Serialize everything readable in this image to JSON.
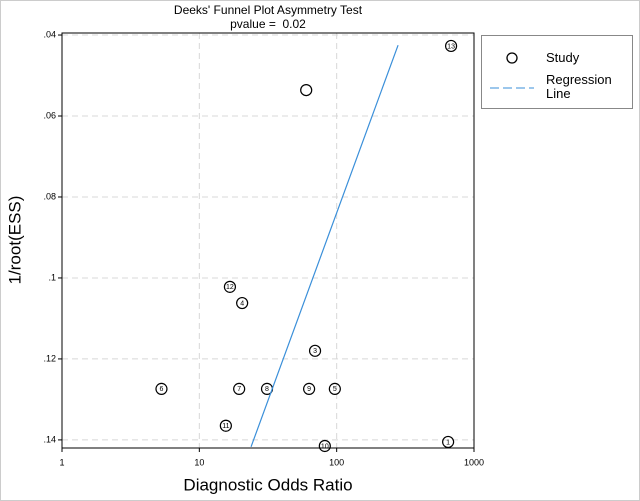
{
  "chart_data": {
    "type": "scatter",
    "title": "Deeks' Funnel Plot Asymmetry Test",
    "subtitle": "pvalue =  0.02",
    "x_label": "Diagnostic Odds Ratio",
    "y_label": "1/root(ESS)",
    "x_log": true,
    "y_inverted": true,
    "grid": true,
    "xlim": [
      1,
      1000
    ],
    "xticks": [
      1,
      10,
      100,
      1000
    ],
    "ylim": [
      0.0395,
      0.142
    ],
    "yticks": [
      {
        "value": 0.04,
        "label": ".04"
      },
      {
        "value": 0.06,
        "label": ".06"
      },
      {
        "value": 0.08,
        "label": ".08"
      },
      {
        "value": 0.1,
        "label": ".1"
      },
      {
        "value": 0.12,
        "label": ".12"
      },
      {
        "value": 0.14,
        "label": ".14"
      }
    ],
    "series": [
      {
        "name": "Study",
        "color": "#000000",
        "x": [
          648,
          60,
          69.6,
          20.5,
          97,
          5.3,
          19.5,
          31.1,
          63,
          82,
          15.6,
          16.7,
          681
        ],
        "values": [
          0.1405,
          0.0536,
          0.118,
          0.1062,
          0.1274,
          0.1274,
          0.1274,
          0.1274,
          0.1274,
          0.1415,
          0.1365,
          0.1022,
          0.0427
        ],
        "point_labels": [
          "1",
          null,
          "3",
          "4",
          "5",
          "6",
          "7",
          "8",
          "9",
          "10",
          "11",
          "12",
          "13"
        ]
      }
    ],
    "regression": {
      "name": "Regression Line",
      "color": "#3a8fd9",
      "x": [
        23.8,
        280
      ],
      "y": [
        0.1417,
        0.0425
      ]
    }
  }
}
